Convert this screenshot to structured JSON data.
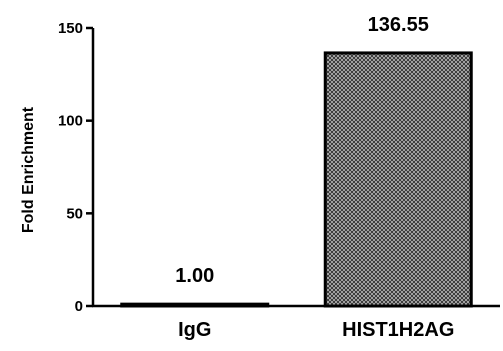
{
  "chart_data": {
    "type": "bar",
    "title": "",
    "xlabel": "",
    "ylabel": "Fold Enrichment",
    "categories": [
      "IgG",
      "HIST1H2AG"
    ],
    "values": [
      1.0,
      136.55
    ],
    "data_labels": [
      "1.00",
      "136.55"
    ],
    "yticks": [
      0,
      50,
      100,
      150
    ],
    "ytick_labels": [
      "0",
      "50",
      "100",
      "150"
    ],
    "ylim": [
      0,
      150
    ],
    "grid": false,
    "legend": "none",
    "bar_fill": "crosshatch",
    "colors": {
      "bar_fill": "#bdbdbd",
      "hatch": "#2b2b2b",
      "bar_border": "#000000",
      "axis": "#000000",
      "text": "#000000"
    }
  }
}
